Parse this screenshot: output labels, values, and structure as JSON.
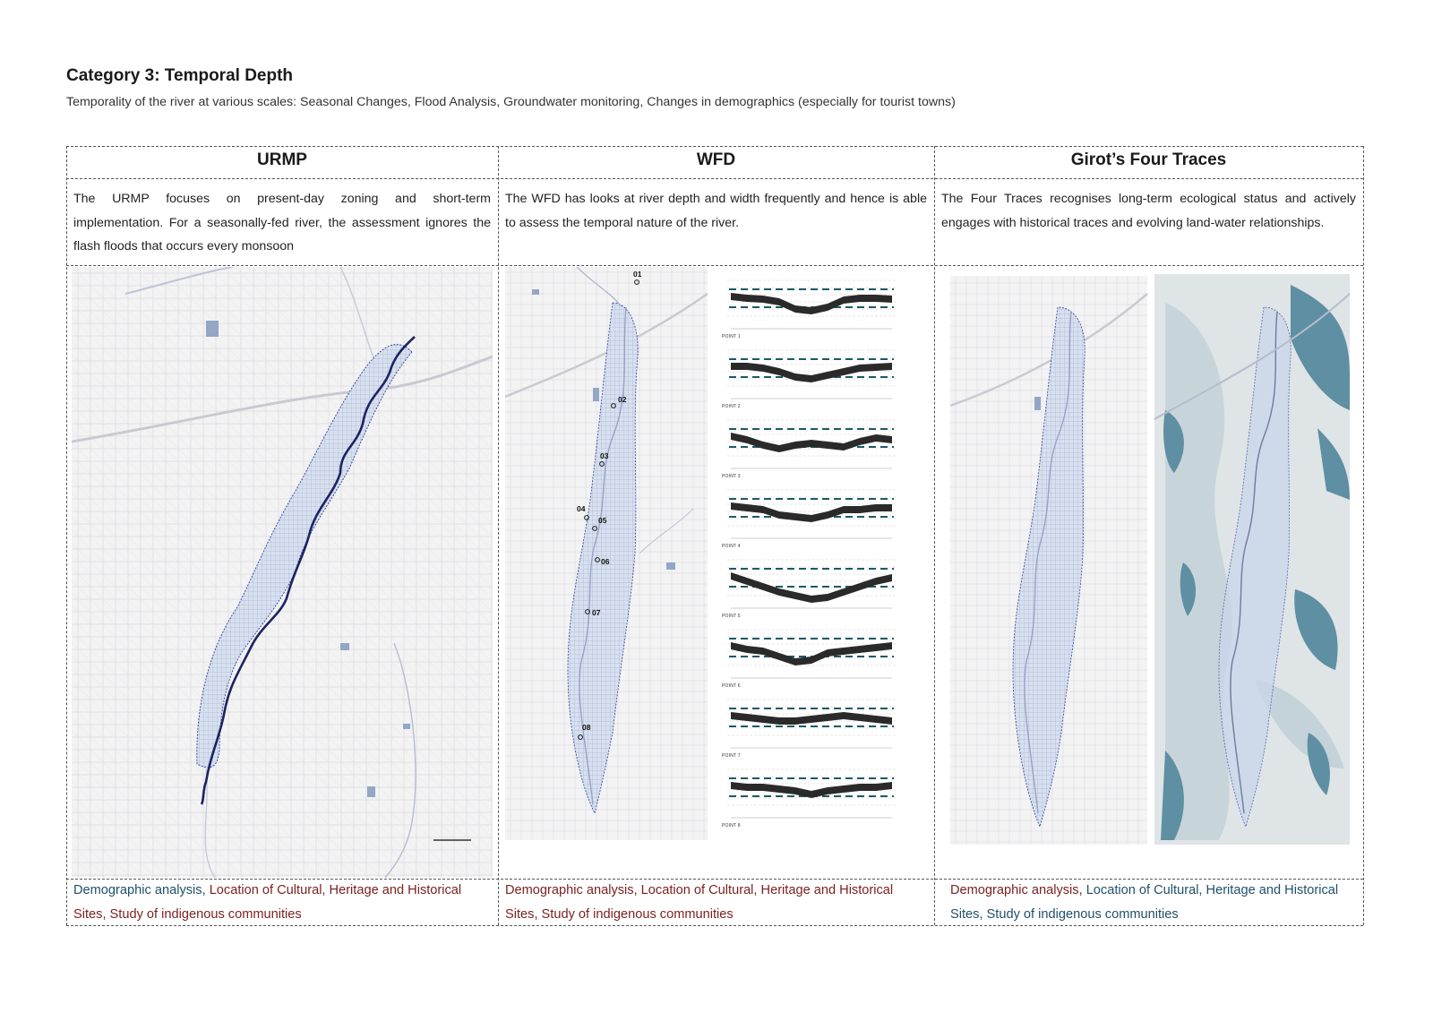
{
  "page": {
    "title": "Category 3: Temporal Depth",
    "subtitle": "Temporality of the river at various scales: Seasonal Changes, Flood Analysis, Groundwater monitoring, Changes in demographics (especially for tourist towns)"
  },
  "columns": [
    {
      "title": "URMP",
      "description": "The URMP focuses on present-day zoning and short-term implementation. For a seasonally-fed river, the assessment ignores the flash floods that occurs every monsoon",
      "footer": [
        {
          "text": "Demographic analysis, ",
          "tone": "blue"
        },
        {
          "text": "Location of Cultural, Heritage and Historical Sites, Study of indigenous communities",
          "tone": "red"
        }
      ]
    },
    {
      "title": "WFD",
      "description": "The WFD has looks at river depth and width frequently and hence is able to assess the temporal nature of the river.",
      "footer": [
        {
          "text": "Demographic analysis, Location of Cultural, Heritage and Historical Sites, Study of indigenous communities",
          "tone": "red"
        }
      ]
    },
    {
      "title": "Girot’s Four Traces",
      "description": "The Four Traces recognises long-term ecological status and actively engages with historical traces and evolving land-water relationships.",
      "footer": [
        {
          "text": "Demographic analysis, ",
          "tone": "red"
        },
        {
          "text": "Location of Cultural, Heritage and Historical Sites, Study of indigenous communities",
          "tone": "blue"
        }
      ]
    }
  ],
  "wfd_points": [
    "01",
    "02",
    "03",
    "04",
    "05",
    "06",
    "07",
    "08"
  ],
  "wfd_sections": [
    "POINT 1",
    "POINT 2",
    "POINT 3",
    "POINT 4",
    "POINT 5",
    "POINT 6",
    "POINT 7",
    "POINT 8"
  ],
  "colors": {
    "river_urmp": "#1c2360",
    "river_floodplain": "#c9d6ea",
    "flood_outline": "#2c3d9c",
    "trace_teal": "#5f8fa3",
    "trace_light": "#c4d3d9",
    "section_fill": "#2a2a2a",
    "water_level": "#1b5a63"
  }
}
